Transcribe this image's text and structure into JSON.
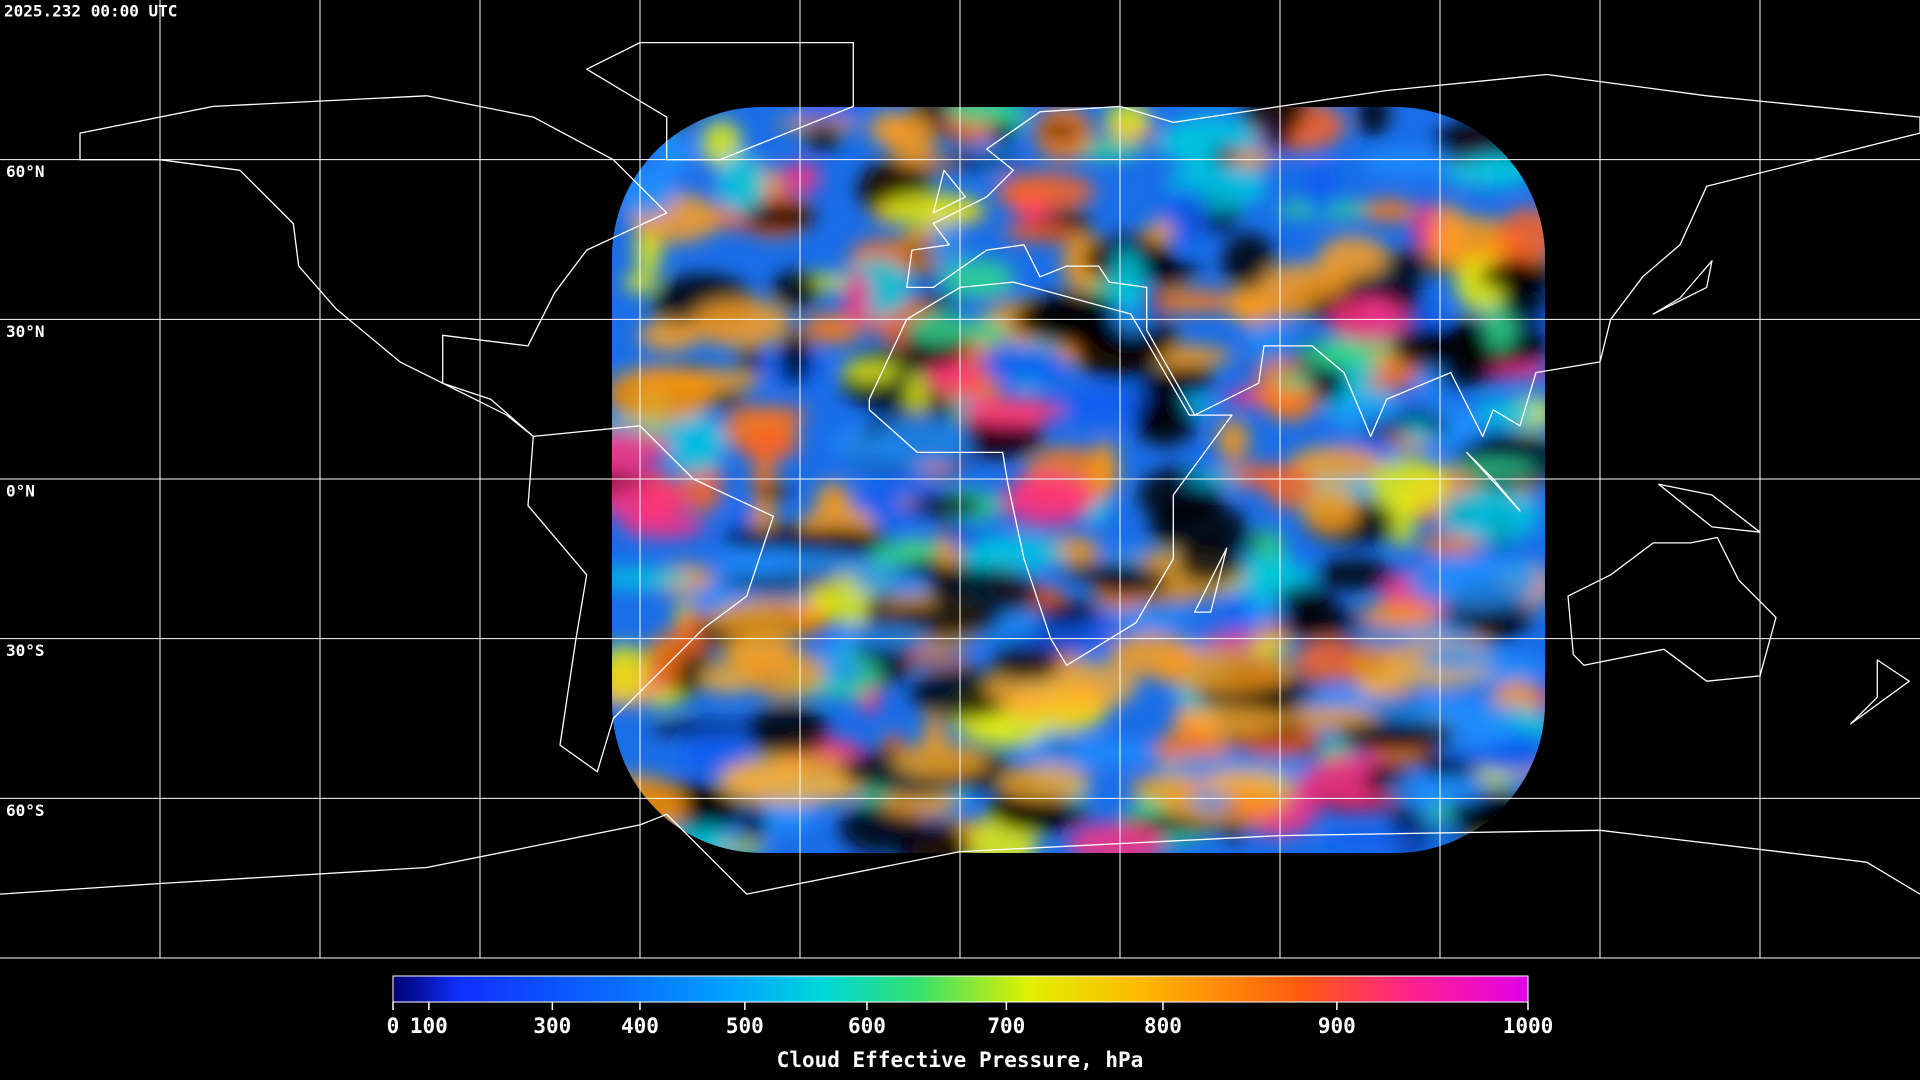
{
  "header": {
    "title": "2025.232 00:00 UTC"
  },
  "map": {
    "lat_labels": [
      {
        "value": 60,
        "label": "60°N"
      },
      {
        "value": 30,
        "label": "30°N"
      },
      {
        "value": 0,
        "label": "0°N"
      },
      {
        "value": -30,
        "label": "30°S"
      },
      {
        "value": -60,
        "label": "60°S"
      }
    ]
  },
  "colorbar": {
    "label": "Cloud Effective Pressure, hPa",
    "range": [
      0,
      1000
    ],
    "ticks": [
      0,
      100,
      300,
      400,
      500,
      600,
      700,
      800,
      900,
      1000
    ]
  }
}
